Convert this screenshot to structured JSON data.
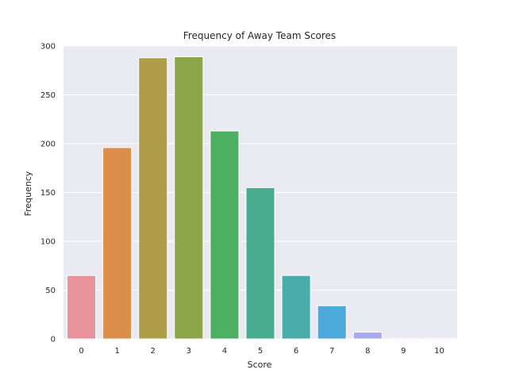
{
  "chart_data": {
    "type": "bar",
    "title": "Frequency of Away Team Scores",
    "xlabel": "Score",
    "ylabel": "Frequency",
    "categories": [
      "0",
      "1",
      "2",
      "3",
      "4",
      "5",
      "6",
      "7",
      "8",
      "9",
      "10"
    ],
    "values": [
      65,
      196,
      288,
      289,
      213,
      155,
      65,
      34,
      7,
      1,
      1
    ],
    "ylim": [
      0,
      300
    ],
    "yticks": [
      0,
      50,
      100,
      150,
      200,
      250,
      300
    ],
    "grid": true,
    "legend": "none",
    "colors": [
      "#e8929c",
      "#dc8e4b",
      "#b09d48",
      "#8ca548",
      "#4daf62",
      "#48ad8e",
      "#4aabab",
      "#4baad9",
      "#a8aaf0",
      "#d99ce8",
      "#e88ec9"
    ],
    "background": "#eaeaf2",
    "grid_color": "#ffffff"
  }
}
